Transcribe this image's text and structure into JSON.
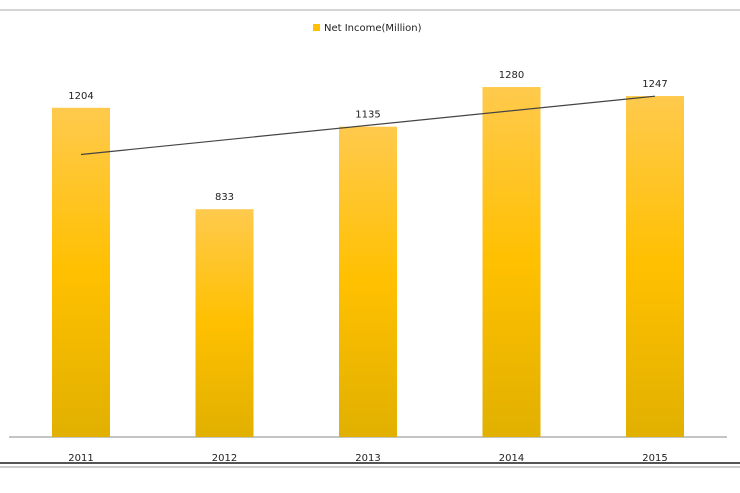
{
  "chart_data": {
    "type": "bar",
    "legend": "Net Income(Million)",
    "color": "#ffc000",
    "categories": [
      "2011",
      "2012",
      "2013",
      "2014",
      "2015"
    ],
    "values": [
      1204,
      833,
      1135,
      1280,
      1247
    ],
    "trendline": "linear"
  }
}
